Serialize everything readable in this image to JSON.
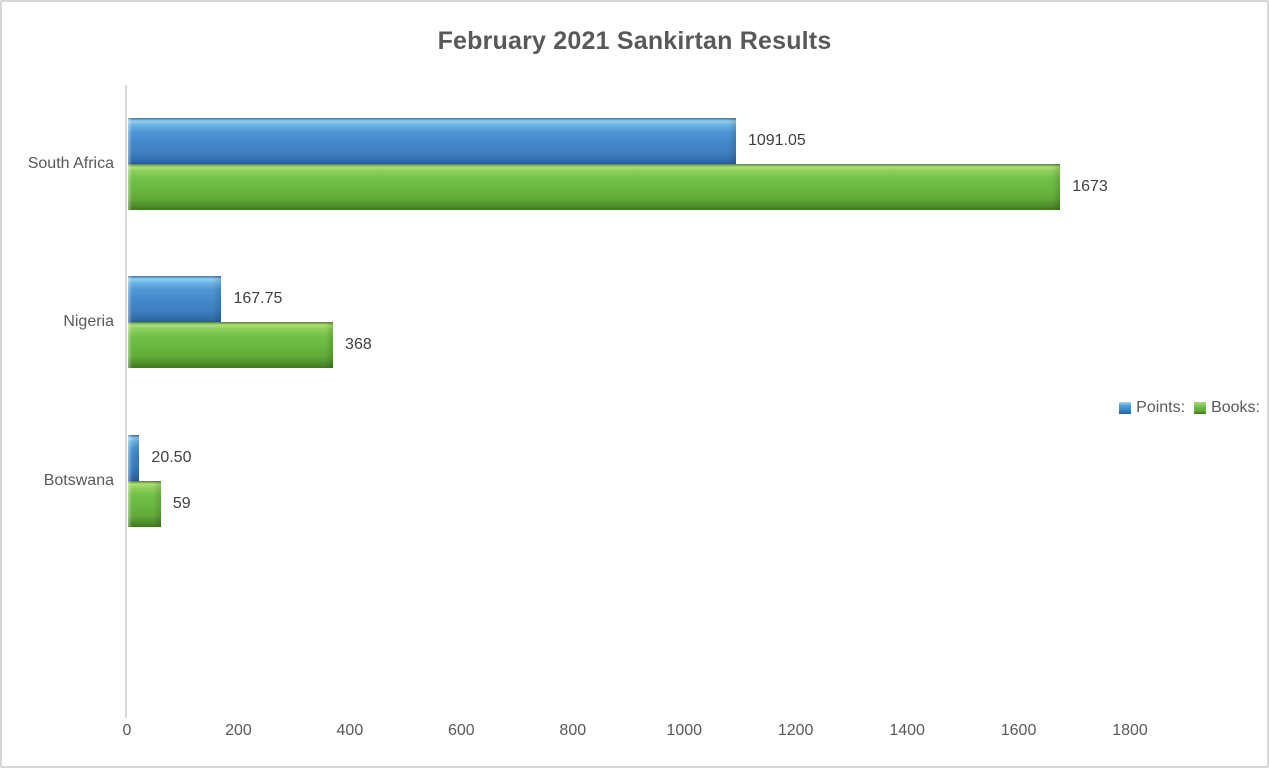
{
  "chart_data": {
    "type": "bar",
    "orientation": "horizontal",
    "title": "February 2021 Sankirtan Results",
    "categories": [
      "South Africa",
      "Nigeria",
      "Botswana"
    ],
    "series": [
      {
        "name": "Points:",
        "color": "#4489CC",
        "values": [
          1091.05,
          167.75,
          20.5
        ],
        "data_labels": [
          "1091.05",
          "167.75",
          "20.50"
        ]
      },
      {
        "name": "Books:",
        "color": "#69B840",
        "values": [
          1673,
          368,
          59
        ],
        "data_labels": [
          "1673",
          "368",
          "59"
        ]
      }
    ],
    "x_axis": {
      "min": 0,
      "max": 1800,
      "tick_interval": 200,
      "tick_labels": [
        "0",
        "200",
        "400",
        "600",
        "800",
        "1000",
        "1200",
        "1400",
        "1600",
        "1800"
      ]
    },
    "legend_position": "right",
    "grid": false,
    "category_slots": 4,
    "colors": {
      "title_text": "#595959",
      "axis_line": "#D9D9D9",
      "tick_text": "#595959",
      "data_label_text": "#404040",
      "chart_border": "#D6D6D6",
      "background": "#FFFFFF"
    }
  }
}
